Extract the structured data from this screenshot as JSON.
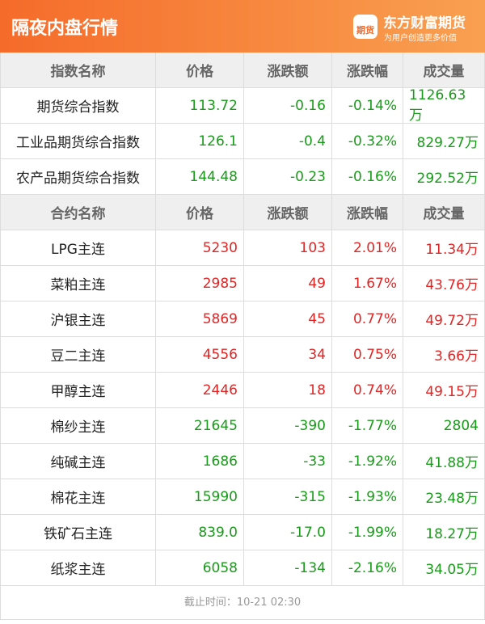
{
  "header": {
    "title": "隔夜内盘行情",
    "brand": "东方财富期货",
    "slogan": "为用户创造更多价值",
    "logo": "期货"
  },
  "index_table": {
    "columns": [
      "指数名称",
      "价格",
      "涨跌额",
      "涨跌幅",
      "成交量"
    ],
    "rows": [
      [
        "期货综合指数",
        "113.72",
        "-0.16",
        "-0.14%",
        "1126.63万"
      ],
      [
        "工业品期货综合指数",
        "126.1",
        "-0.4",
        "-0.32%",
        "829.27万"
      ],
      [
        "农产品期货综合指数",
        "144.48",
        "-0.23",
        "-0.16%",
        "292.52万"
      ]
    ]
  },
  "contract_table": {
    "columns": [
      "合约名称",
      "价格",
      "涨跌额",
      "涨跌幅",
      "成交量"
    ],
    "rows": [
      [
        "LPG主连",
        "5230",
        "103",
        "2.01%",
        "11.34万"
      ],
      [
        "菜粕主连",
        "2985",
        "49",
        "1.67%",
        "43.76万"
      ],
      [
        "沪银主连",
        "5869",
        "45",
        "0.77%",
        "49.72万"
      ],
      [
        "豆二主连",
        "4556",
        "34",
        "0.75%",
        "3.66万"
      ],
      [
        "甲醇主连",
        "2446",
        "18",
        "0.74%",
        "49.15万"
      ],
      [
        "棉纱主连",
        "21645",
        "-390",
        "-1.77%",
        "2804"
      ],
      [
        "纯碱主连",
        "1686",
        "-33",
        "-1.92%",
        "41.88万"
      ],
      [
        "棉花主连",
        "15990",
        "-315",
        "-1.93%",
        "23.48万"
      ],
      [
        "铁矿石主连",
        "839.0",
        "-17.0",
        "-1.99%",
        "18.27万"
      ],
      [
        "纸浆主连",
        "6058",
        "-134",
        "-2.16%",
        "34.05万"
      ]
    ]
  },
  "footer": {
    "text": "截止时间：10-21 02:30"
  },
  "colors": {
    "up": "#e02525",
    "down": "#1a9a1a"
  }
}
